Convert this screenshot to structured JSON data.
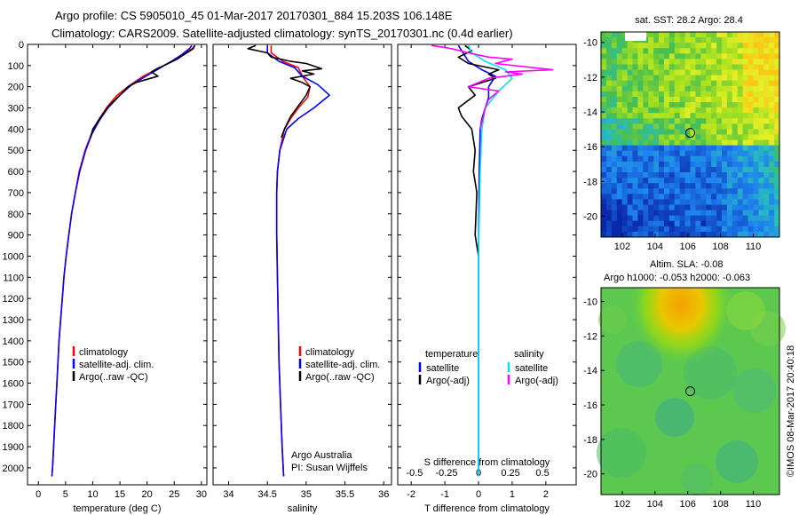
{
  "header": {
    "line1": "Argo profile: CS 5905010_45 01-Mar-2017 20170301_884 15.203S 106.148E",
    "line2": "Climatology: CARS2009. Satellite-adjusted climatology: synTS_20170301.nc (0.4d earlier)"
  },
  "footer_stamp": "©IMOS 08-Mar-2017 20:40:18",
  "colors": {
    "climatology": "#ff0000",
    "satellite": "#0000ff",
    "argo": "#000000",
    "argo_salinity": "#ff00ff",
    "satellite_salinity": "#00e0ff"
  },
  "chart_data": [
    {
      "id": "temperature",
      "type": "line",
      "xlabel": "temperature (deg C)",
      "ylabel": "",
      "xlim": [
        -2,
        31
      ],
      "ylim": [
        2080,
        0
      ],
      "xticks": [
        0,
        5,
        10,
        15,
        20,
        25,
        30
      ],
      "yticks": [
        0,
        100,
        200,
        300,
        400,
        500,
        600,
        700,
        800,
        900,
        1000,
        1100,
        1200,
        1300,
        1400,
        1500,
        1600,
        1700,
        1800,
        1900,
        2000
      ],
      "legend": {
        "position": "lower-middle",
        "entries": [
          "climatology",
          "satellite-adj. clim.",
          "Argo(..raw -QC)"
        ]
      },
      "series": [
        {
          "name": "climatology",
          "color": "#ff0000",
          "points": [
            [
              28.8,
              5
            ],
            [
              28.3,
              20
            ],
            [
              26.5,
              50
            ],
            [
              24.5,
              80
            ],
            [
              22,
              115
            ],
            [
              19.3,
              150
            ],
            [
              17,
              190
            ],
            [
              14.5,
              240
            ],
            [
              12.5,
              300
            ],
            [
              11,
              360
            ],
            [
              9.8,
              420
            ],
            [
              8.6,
              500
            ],
            [
              7.5,
              600
            ],
            [
              6.8,
              700
            ],
            [
              6.1,
              800
            ],
            [
              5.6,
              900
            ],
            [
              5.1,
              1000
            ],
            [
              4.7,
              1100
            ],
            [
              4.4,
              1200
            ],
            [
              4.1,
              1300
            ],
            [
              3.8,
              1400
            ],
            [
              3.6,
              1500
            ],
            [
              3.4,
              1600
            ],
            [
              3.2,
              1700
            ],
            [
              3.0,
              1800
            ],
            [
              2.8,
              1900
            ],
            [
              2.6,
              2000
            ],
            [
              2.5,
              2040
            ]
          ]
        },
        {
          "name": "satellite-adj. clim.",
          "color": "#0000ff",
          "points": [
            [
              28.2,
              5
            ],
            [
              27.8,
              20
            ],
            [
              26.3,
              50
            ],
            [
              24.5,
              80
            ],
            [
              22.5,
              110
            ],
            [
              19.8,
              150
            ],
            [
              17.2,
              190
            ],
            [
              15,
              240
            ],
            [
              12.8,
              300
            ],
            [
              11.2,
              360
            ],
            [
              9.9,
              420
            ],
            [
              8.7,
              500
            ],
            [
              7.6,
              600
            ],
            [
              6.8,
              700
            ],
            [
              6.1,
              800
            ],
            [
              5.6,
              900
            ],
            [
              5.1,
              1000
            ],
            [
              4.7,
              1100
            ],
            [
              4.4,
              1200
            ],
            [
              4.1,
              1300
            ],
            [
              3.8,
              1400
            ],
            [
              3.6,
              1500
            ],
            [
              3.4,
              1600
            ],
            [
              3.2,
              1700
            ],
            [
              3.0,
              1800
            ],
            [
              2.8,
              1900
            ],
            [
              2.6,
              2000
            ],
            [
              2.5,
              2040
            ]
          ]
        },
        {
          "name": "Argo(..raw -QC)",
          "color": "#000000",
          "points": [
            [
              28.8,
              5
            ],
            [
              28.5,
              20
            ],
            [
              27,
              45
            ],
            [
              25.5,
              70
            ],
            [
              23.5,
              95
            ],
            [
              21.8,
              115
            ],
            [
              20.8,
              130
            ],
            [
              22,
              150
            ],
            [
              20,
              165
            ],
            [
              18,
              180
            ],
            [
              16.5,
              200
            ],
            [
              15,
              240
            ],
            [
              13,
              290
            ],
            [
              11.3,
              350
            ],
            [
              10,
              400
            ],
            [
              9.6,
              440
            ]
          ]
        }
      ]
    },
    {
      "id": "salinity",
      "type": "line",
      "xlabel": "salinity",
      "ylabel": "",
      "xlim": [
        33.8,
        36.1
      ],
      "ylim": [
        2080,
        0
      ],
      "xticks": [
        34,
        34.5,
        35,
        35.5,
        36
      ],
      "xtick_labels": [
        "34",
        "34.5",
        "35",
        "35.5",
        "36"
      ],
      "legend": {
        "position": "lower-middle",
        "entries": [
          "climatology",
          "satellite-adj. clim.",
          "Argo(..raw -QC)"
        ]
      },
      "annotation": [
        "Argo Australia",
        "PI: Susan Wijffels"
      ],
      "series": [
        {
          "name": "climatology",
          "color": "#ff0000",
          "points": [
            [
              34.55,
              5
            ],
            [
              34.55,
              40
            ],
            [
              34.7,
              80
            ],
            [
              34.9,
              110
            ],
            [
              34.95,
              150
            ],
            [
              35.05,
              200
            ],
            [
              35.02,
              250
            ],
            [
              34.9,
              300
            ],
            [
              34.8,
              350
            ],
            [
              34.72,
              400
            ],
            [
              34.66,
              500
            ],
            [
              34.63,
              600
            ],
            [
              34.62,
              700
            ],
            [
              34.62,
              900
            ],
            [
              34.63,
              1100
            ],
            [
              34.64,
              1300
            ],
            [
              34.65,
              1500
            ],
            [
              34.67,
              1700
            ],
            [
              34.69,
              1900
            ],
            [
              34.71,
              2040
            ]
          ]
        },
        {
          "name": "satellite-adj. clim.",
          "color": "#0000ff",
          "points": [
            [
              34.5,
              5
            ],
            [
              34.5,
              40
            ],
            [
              34.65,
              80
            ],
            [
              34.85,
              110
            ],
            [
              34.95,
              150
            ],
            [
              35.15,
              190
            ],
            [
              35.3,
              240
            ],
            [
              35.1,
              300
            ],
            [
              34.9,
              350
            ],
            [
              34.75,
              400
            ],
            [
              34.66,
              500
            ],
            [
              34.63,
              600
            ],
            [
              34.62,
              700
            ],
            [
              34.62,
              900
            ],
            [
              34.63,
              1100
            ],
            [
              34.64,
              1300
            ],
            [
              34.65,
              1500
            ],
            [
              34.67,
              1700
            ],
            [
              34.69,
              1900
            ],
            [
              34.71,
              2040
            ]
          ]
        },
        {
          "name": "Argo(..raw -QC)",
          "color": "#000000",
          "points": [
            [
              34.35,
              5
            ],
            [
              34.25,
              20
            ],
            [
              34.5,
              40
            ],
            [
              34.55,
              60
            ],
            [
              34.8,
              80
            ],
            [
              35.0,
              90
            ],
            [
              35.2,
              115
            ],
            [
              34.95,
              125
            ],
            [
              35.1,
              140
            ],
            [
              34.8,
              160
            ],
            [
              34.95,
              180
            ],
            [
              35.05,
              200
            ],
            [
              35.0,
              240
            ],
            [
              34.9,
              290
            ],
            [
              34.8,
              340
            ],
            [
              34.72,
              400
            ],
            [
              34.68,
              440
            ]
          ]
        }
      ]
    },
    {
      "id": "difference",
      "type": "line",
      "xlabel": "T difference from climatology",
      "ylabel": "",
      "xlim": [
        -2.4,
        2.9
      ],
      "ylim": [
        2080,
        0
      ],
      "xticks": [
        -2,
        -1,
        0,
        1,
        2
      ],
      "top_axis_label": "S difference from climatology",
      "top_ticks": [
        "-0.5",
        "-0.25",
        "0",
        "0.25",
        "0.5"
      ],
      "legend": {
        "position": "lower",
        "groups": [
          {
            "title": "temperature",
            "entries": [
              "satellite",
              "Argo(-adj)"
            ]
          },
          {
            "title": "salinity",
            "entries": [
              "satellite",
              "Argo(-adj)"
            ]
          }
        ]
      },
      "series": [
        {
          "name": "temperature satellite",
          "color": "#0000ff",
          "points": [
            [
              -0.6,
              5
            ],
            [
              -0.5,
              30
            ],
            [
              -0.3,
              80
            ],
            [
              0.1,
              120
            ],
            [
              0.5,
              150
            ],
            [
              0.3,
              200
            ],
            [
              0.3,
              250
            ],
            [
              0.2,
              300
            ],
            [
              0.1,
              350
            ],
            [
              0.05,
              400
            ],
            [
              0.02,
              600
            ],
            [
              0,
              1000
            ],
            [
              0,
              2040
            ]
          ]
        },
        {
          "name": "temperature Argo(-adj)",
          "color": "#000000",
          "points": [
            [
              -0.4,
              5
            ],
            [
              -0.2,
              30
            ],
            [
              -0.6,
              60
            ],
            [
              -0.3,
              90
            ],
            [
              0.6,
              120
            ],
            [
              0.3,
              140
            ],
            [
              0.5,
              160
            ],
            [
              -0.3,
              200
            ],
            [
              -0.1,
              240
            ],
            [
              -0.6,
              300
            ],
            [
              -0.5,
              340
            ],
            [
              -0.2,
              400
            ],
            [
              -0.1,
              500
            ],
            [
              -0.15,
              600
            ],
            [
              -0.05,
              700
            ],
            [
              -0.1,
              900
            ],
            [
              0,
              1000
            ]
          ]
        },
        {
          "name": "salinity satellite",
          "color": "#00e0ff",
          "points": [
            [
              -0.3,
              5
            ],
            [
              -0.2,
              40
            ],
            [
              0.2,
              80
            ],
            [
              0.8,
              120
            ],
            [
              1.0,
              160
            ],
            [
              0.6,
              220
            ],
            [
              0.4,
              260
            ],
            [
              0.2,
              300
            ],
            [
              0.1,
              400
            ],
            [
              0.05,
              600
            ],
            [
              0,
              1000
            ],
            [
              0,
              2040
            ]
          ]
        },
        {
          "name": "salinity Argo(-adj)",
          "color": "#ff00ff",
          "points": [
            [
              -1.4,
              5
            ],
            [
              -0.8,
              20
            ],
            [
              -0.3,
              40
            ],
            [
              0.3,
              60
            ],
            [
              1.0,
              70
            ],
            [
              0.5,
              90
            ],
            [
              2.2,
              120
            ],
            [
              0.8,
              130
            ],
            [
              1.3,
              140
            ],
            [
              0.3,
              160
            ],
            [
              -0.3,
              200
            ],
            [
              0.6,
              220
            ],
            [
              0.3,
              260
            ],
            [
              0.2,
              300
            ],
            [
              0.05,
              400
            ]
          ]
        }
      ]
    },
    {
      "id": "sst-map",
      "type": "heatmap",
      "title": "sat. SST: 28.2  Argo: 28.4",
      "xlim": [
        100.7,
        111.6
      ],
      "ylim": [
        -21.2,
        -9.4
      ],
      "xticks": [
        102,
        104,
        106,
        108,
        110
      ],
      "yticks": [
        -10,
        -12,
        -14,
        -16,
        -18,
        -20
      ],
      "marker": {
        "lon": 106.148,
        "lat": -15.203
      }
    },
    {
      "id": "sla-map",
      "type": "heatmap",
      "title": [
        "Altim. SLA: -0.08",
        "Argo h1000: -0.053 h2000: -0.063"
      ],
      "xlim": [
        100.7,
        111.6
      ],
      "ylim": [
        -21.2,
        -9.2
      ],
      "xticks": [
        102,
        104,
        106,
        108,
        110
      ],
      "yticks": [
        -10,
        -12,
        -14,
        -16,
        -18,
        -20
      ],
      "marker": {
        "lon": 106.148,
        "lat": -15.203
      }
    }
  ]
}
